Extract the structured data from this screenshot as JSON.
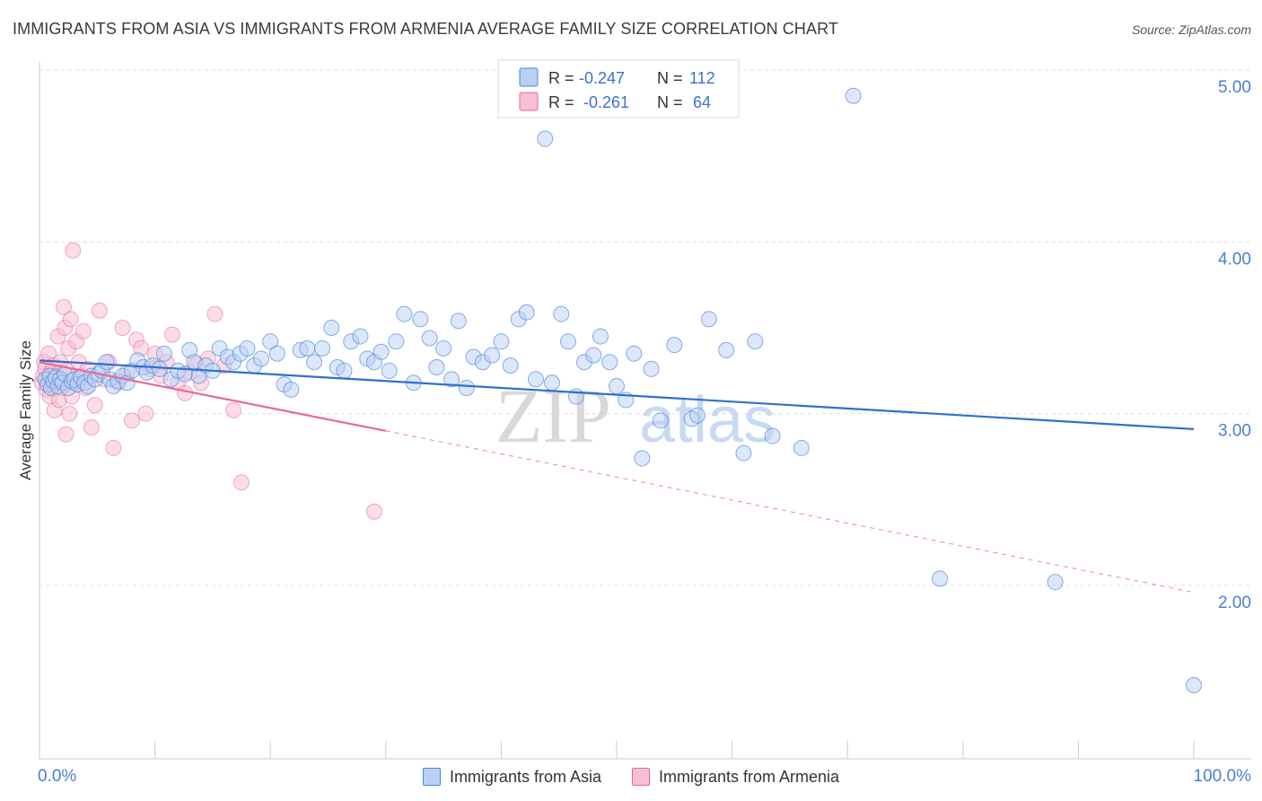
{
  "header": {
    "title": "IMMIGRANTS FROM ASIA VS IMMIGRANTS FROM ARMENIA AVERAGE FAMILY SIZE CORRELATION CHART",
    "source": "Source: ZipAtlas.com"
  },
  "colors": {
    "blue": "#4a86d8",
    "blue_fill": "#b9d0f3",
    "pink": "#e8699a",
    "pink_fill": "#f7bfd3",
    "tick_text": "#4a7fd0"
  },
  "legend": {
    "rows": [
      {
        "r_label": "R =",
        "r_value": "-0.247",
        "n_label": "N =",
        "n_value": "112"
      },
      {
        "r_label": "R =",
        "r_value": "-0.261",
        "n_label": "N =",
        "n_value": "64"
      }
    ]
  },
  "watermark": {
    "zip": "ZIP",
    "atlas": "atlas"
  },
  "chart_data": {
    "type": "scatter",
    "title": "IMMIGRANTS FROM ASIA VS IMMIGRANTS FROM ARMENIA AVERAGE FAMILY SIZE CORRELATION CHART",
    "ylabel": "Average Family Size",
    "xlabel": "",
    "xlim": [
      0,
      100
    ],
    "ylim": [
      1.0,
      5.1
    ],
    "x_tick_labels": [
      "0.0%",
      "100.0%"
    ],
    "y_ticks": [
      2.0,
      3.0,
      4.0,
      5.0
    ],
    "y_tick_labels": [
      "2.00",
      "3.00",
      "4.00",
      "5.00"
    ],
    "grid": true,
    "legend_position": "top-center",
    "series": [
      {
        "name": "Immigrants from Asia",
        "color": "#4a86d8",
        "r": -0.247,
        "n": 112,
        "trend": {
          "x": [
            0,
            100
          ],
          "y": [
            3.31,
            2.91
          ]
        },
        "points": [
          [
            0.5,
            3.2
          ],
          [
            0.7,
            3.17
          ],
          [
            0.9,
            3.22
          ],
          [
            1.0,
            3.15
          ],
          [
            1.2,
            3.19
          ],
          [
            1.4,
            3.21
          ],
          [
            1.6,
            3.16
          ],
          [
            1.8,
            3.2
          ],
          [
            2.0,
            3.18
          ],
          [
            2.2,
            3.23
          ],
          [
            2.5,
            3.15
          ],
          [
            2.8,
            3.19
          ],
          [
            3.0,
            3.2
          ],
          [
            3.3,
            3.17
          ],
          [
            3.6,
            3.21
          ],
          [
            3.9,
            3.18
          ],
          [
            4.2,
            3.16
          ],
          [
            4.5,
            3.22
          ],
          [
            4.8,
            3.2
          ],
          [
            5.1,
            3.23
          ],
          [
            5.4,
            3.25
          ],
          [
            5.8,
            3.3
          ],
          [
            6.1,
            3.2
          ],
          [
            6.4,
            3.16
          ],
          [
            6.8,
            3.19
          ],
          [
            7.2,
            3.22
          ],
          [
            7.6,
            3.18
          ],
          [
            8.0,
            3.25
          ],
          [
            8.5,
            3.31
          ],
          [
            9.0,
            3.27
          ],
          [
            9.3,
            3.24
          ],
          [
            9.8,
            3.28
          ],
          [
            10.4,
            3.26
          ],
          [
            10.8,
            3.35
          ],
          [
            11.4,
            3.2
          ],
          [
            12.0,
            3.25
          ],
          [
            12.6,
            3.23
          ],
          [
            13.0,
            3.37
          ],
          [
            13.4,
            3.3
          ],
          [
            13.8,
            3.22
          ],
          [
            14.4,
            3.28
          ],
          [
            15.0,
            3.25
          ],
          [
            15.6,
            3.38
          ],
          [
            16.3,
            3.33
          ],
          [
            16.8,
            3.3
          ],
          [
            17.4,
            3.35
          ],
          [
            18.0,
            3.38
          ],
          [
            18.6,
            3.28
          ],
          [
            19.2,
            3.32
          ],
          [
            20.0,
            3.42
          ],
          [
            20.6,
            3.35
          ],
          [
            21.2,
            3.17
          ],
          [
            21.8,
            3.14
          ],
          [
            22.6,
            3.37
          ],
          [
            23.2,
            3.38
          ],
          [
            23.8,
            3.3
          ],
          [
            24.5,
            3.38
          ],
          [
            25.3,
            3.5
          ],
          [
            25.8,
            3.27
          ],
          [
            26.4,
            3.25
          ],
          [
            27.0,
            3.42
          ],
          [
            27.8,
            3.45
          ],
          [
            28.4,
            3.32
          ],
          [
            29.0,
            3.3
          ],
          [
            29.6,
            3.36
          ],
          [
            30.3,
            3.25
          ],
          [
            30.9,
            3.42
          ],
          [
            31.6,
            3.58
          ],
          [
            32.4,
            3.18
          ],
          [
            33.0,
            3.55
          ],
          [
            33.8,
            3.44
          ],
          [
            34.4,
            3.27
          ],
          [
            35.0,
            3.38
          ],
          [
            35.7,
            3.2
          ],
          [
            36.3,
            3.54
          ],
          [
            37.0,
            3.15
          ],
          [
            37.6,
            3.33
          ],
          [
            38.4,
            3.3
          ],
          [
            39.2,
            3.34
          ],
          [
            40.0,
            3.42
          ],
          [
            40.8,
            3.28
          ],
          [
            41.5,
            3.55
          ],
          [
            42.2,
            3.59
          ],
          [
            43.0,
            3.2
          ],
          [
            43.8,
            4.6
          ],
          [
            44.4,
            3.18
          ],
          [
            45.2,
            3.58
          ],
          [
            45.8,
            3.42
          ],
          [
            46.5,
            3.1
          ],
          [
            47.2,
            3.3
          ],
          [
            48.0,
            3.34
          ],
          [
            48.6,
            3.45
          ],
          [
            49.4,
            3.3
          ],
          [
            50.0,
            3.16
          ],
          [
            50.8,
            3.08
          ],
          [
            51.5,
            3.35
          ],
          [
            52.2,
            2.74
          ],
          [
            53.0,
            3.26
          ],
          [
            53.8,
            2.96
          ],
          [
            55.0,
            3.4
          ],
          [
            56.5,
            2.97
          ],
          [
            57.0,
            2.99
          ],
          [
            58.0,
            3.55
          ],
          [
            59.5,
            3.37
          ],
          [
            61.0,
            2.77
          ],
          [
            62.0,
            3.42
          ],
          [
            63.5,
            2.87
          ],
          [
            66.0,
            2.8
          ],
          [
            70.5,
            4.85
          ],
          [
            78.0,
            2.04
          ],
          [
            88.0,
            2.02
          ],
          [
            100.0,
            1.42
          ]
        ]
      },
      {
        "name": "Immigrants from Armenia",
        "color": "#e8699a",
        "r": -0.261,
        "n": 64,
        "trend": {
          "x": [
            0,
            30
          ],
          "y": [
            3.3,
            2.9
          ]
        },
        "trend_dashed": {
          "x": [
            30,
            100
          ],
          "y": [
            2.9,
            1.96
          ]
        },
        "points": [
          [
            0.2,
            3.18
          ],
          [
            0.3,
            3.22
          ],
          [
            0.4,
            3.3
          ],
          [
            0.5,
            3.26
          ],
          [
            0.6,
            3.14
          ],
          [
            0.7,
            3.2
          ],
          [
            0.8,
            3.35
          ],
          [
            0.9,
            3.1
          ],
          [
            1.0,
            3.24
          ],
          [
            1.1,
            3.16
          ],
          [
            1.2,
            3.28
          ],
          [
            1.3,
            3.02
          ],
          [
            1.4,
            3.18
          ],
          [
            1.5,
            3.22
          ],
          [
            1.6,
            3.45
          ],
          [
            1.7,
            3.08
          ],
          [
            1.8,
            3.3
          ],
          [
            1.9,
            3.15
          ],
          [
            2.0,
            3.2
          ],
          [
            2.1,
            3.62
          ],
          [
            2.2,
            3.5
          ],
          [
            2.3,
            2.88
          ],
          [
            2.4,
            3.25
          ],
          [
            2.5,
            3.38
          ],
          [
            2.6,
            3.0
          ],
          [
            2.7,
            3.55
          ],
          [
            2.8,
            3.1
          ],
          [
            2.9,
            3.95
          ],
          [
            3.0,
            3.18
          ],
          [
            3.2,
            3.42
          ],
          [
            3.4,
            3.3
          ],
          [
            3.6,
            3.22
          ],
          [
            3.8,
            3.48
          ],
          [
            4.0,
            3.15
          ],
          [
            4.2,
            3.26
          ],
          [
            4.5,
            2.92
          ],
          [
            4.8,
            3.05
          ],
          [
            5.2,
            3.6
          ],
          [
            5.6,
            3.2
          ],
          [
            6.0,
            3.3
          ],
          [
            6.4,
            2.8
          ],
          [
            6.8,
            3.18
          ],
          [
            7.2,
            3.5
          ],
          [
            7.6,
            3.24
          ],
          [
            8.0,
            2.96
          ],
          [
            8.4,
            3.43
          ],
          [
            8.8,
            3.38
          ],
          [
            9.2,
            3.0
          ],
          [
            9.6,
            3.26
          ],
          [
            10.0,
            3.35
          ],
          [
            10.5,
            3.22
          ],
          [
            11.0,
            3.3
          ],
          [
            11.5,
            3.46
          ],
          [
            12.0,
            3.18
          ],
          [
            12.6,
            3.12
          ],
          [
            13.0,
            3.24
          ],
          [
            13.6,
            3.29
          ],
          [
            14.0,
            3.18
          ],
          [
            14.6,
            3.32
          ],
          [
            15.2,
            3.58
          ],
          [
            16.0,
            3.28
          ],
          [
            16.8,
            3.02
          ],
          [
            17.5,
            2.6
          ],
          [
            29.0,
            2.43
          ]
        ]
      }
    ]
  },
  "bottom_legend": {
    "items": [
      {
        "label": "Immigrants from Asia"
      },
      {
        "label": "Immigrants from Armenia"
      }
    ]
  }
}
